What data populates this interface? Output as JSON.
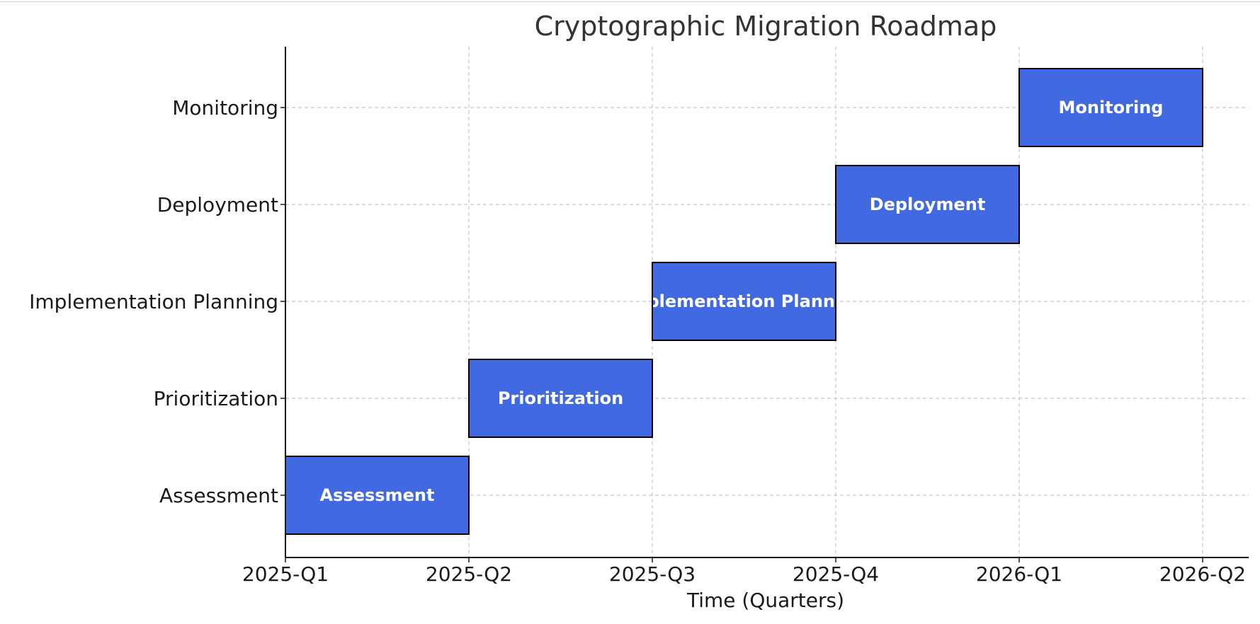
{
  "chart_data": {
    "type": "gantt",
    "title": "Cryptographic Migration Roadmap",
    "xlabel": "Time (Quarters)",
    "ylabel": "",
    "x_ticks": [
      "2025-Q1",
      "2025-Q2",
      "2025-Q3",
      "2025-Q4",
      "2026-Q1",
      "2026-Q2"
    ],
    "categories": [
      "Assessment",
      "Prioritization",
      "Implementation Planning",
      "Deployment",
      "Monitoring"
    ],
    "tasks": [
      {
        "name": "Assessment",
        "start": "2025-Q1",
        "end": "2025-Q2"
      },
      {
        "name": "Prioritization",
        "start": "2025-Q2",
        "end": "2025-Q3"
      },
      {
        "name": "Implementation Planning",
        "start": "2025-Q3",
        "end": "2025-Q4"
      },
      {
        "name": "Deployment",
        "start": "2025-Q4",
        "end": "2026-Q1"
      },
      {
        "name": "Monitoring",
        "start": "2026-Q1",
        "end": "2026-Q2"
      }
    ],
    "grid": true,
    "colors": {
      "bar_fill": "#4169E1",
      "bar_edge": "#000000",
      "bar_text": "#ffffff",
      "grid": "#c8c8c8"
    }
  }
}
